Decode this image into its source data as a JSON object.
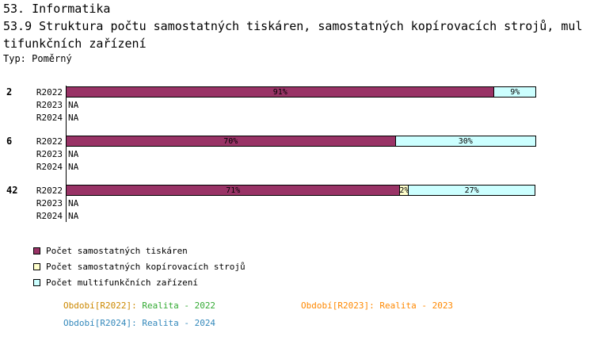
{
  "title": {
    "line1": "53. Informatika",
    "line2": "53.9 Struktura počtu samostatných tiskáren, samostatných kopírovacích strojů, mul",
    "line3": "tifunkčních zařízení",
    "type_label": "Typ: Poměrný"
  },
  "chart_data": {
    "type": "bar",
    "orientation": "horizontal-stacked",
    "unit": "%",
    "xlim": [
      0,
      100
    ],
    "grid": false,
    "na_text": "NA",
    "legend_position": "bottom-left",
    "legend": [
      {
        "label": "Počet samostatných tiskáren",
        "color": "#993366"
      },
      {
        "label": "Počet samostatných kopírovacích strojů",
        "color": "#ffffcc"
      },
      {
        "label": "Počet multifunkčních zařízení",
        "color": "#ccffff"
      }
    ],
    "groups": [
      {
        "label": "2",
        "rows": [
          {
            "period": "R2022",
            "segments": [
              {
                "series": "Počet samostatných tiskáren",
                "value": 91
              },
              {
                "series": "Počet samostatných kopírovacích strojů",
                "value": 0
              },
              {
                "series": "Počet multifunkčních zařízení",
                "value": 9
              }
            ]
          },
          {
            "period": "R2023",
            "na": true
          },
          {
            "period": "R2024",
            "na": true
          }
        ]
      },
      {
        "label": "6",
        "rows": [
          {
            "period": "R2022",
            "segments": [
              {
                "series": "Počet samostatných tiskáren",
                "value": 70
              },
              {
                "series": "Počet samostatných kopírovacích strojů",
                "value": 0
              },
              {
                "series": "Počet multifunkčních zařízení",
                "value": 30
              }
            ]
          },
          {
            "period": "R2023",
            "na": true
          },
          {
            "period": "R2024",
            "na": true
          }
        ]
      },
      {
        "label": "42",
        "rows": [
          {
            "period": "R2022",
            "segments": [
              {
                "series": "Počet samostatných tiskáren",
                "value": 71
              },
              {
                "series": "Počet samostatných kopírovacích strojů",
                "value": 2
              },
              {
                "series": "Počet multifunkčních zařízení",
                "value": 27
              }
            ]
          },
          {
            "period": "R2023",
            "na": true
          },
          {
            "period": "R2024",
            "na": true
          }
        ]
      }
    ]
  },
  "footer": {
    "items": [
      {
        "label": "Období[R2022]:",
        "value": "Realita - 2022",
        "label_color": "#cc8800",
        "value_color": "#33aa33"
      },
      {
        "label": "Období[R2023]:",
        "value": "Realita - 2023",
        "label_color": "#ff8800",
        "value_color": "#ff8800"
      },
      {
        "label": "Období[R2024]:",
        "value": "Realita - 2024",
        "label_color": "#3388bb",
        "value_color": "#3388bb"
      }
    ]
  }
}
